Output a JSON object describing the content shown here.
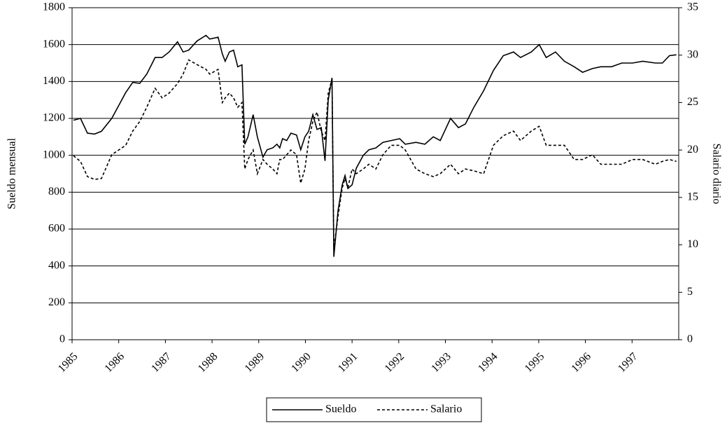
{
  "chart_data": {
    "type": "line",
    "y_label": "Sueldo mensual",
    "y2_label": "Salario diario",
    "x": [
      1985.03,
      1985.18,
      1985.33,
      1985.48,
      1985.63,
      1985.85,
      1986.0,
      1986.15,
      1986.3,
      1986.45,
      1986.6,
      1986.78,
      1986.93,
      1987.08,
      1987.26,
      1987.38,
      1987.5,
      1987.68,
      1987.87,
      1987.95,
      1988.13,
      1988.22,
      1988.28,
      1988.37,
      1988.46,
      1988.55,
      1988.64,
      1988.7,
      1988.77,
      1988.88,
      1988.97,
      1989.09,
      1989.18,
      1989.3,
      1989.39,
      1989.45,
      1989.51,
      1989.6,
      1989.69,
      1989.81,
      1989.9,
      1989.99,
      1990.07,
      1990.16,
      1990.25,
      1990.34,
      1990.42,
      1990.49,
      1990.57,
      1990.61,
      1990.7,
      1990.79,
      1990.85,
      1990.91,
      1991.0,
      1991.09,
      1991.24,
      1991.36,
      1991.51,
      1991.66,
      1991.84,
      1992.02,
      1992.14,
      1992.37,
      1992.56,
      1992.74,
      1992.89,
      1993.11,
      1993.28,
      1993.43,
      1993.61,
      1993.82,
      1994.03,
      1994.24,
      1994.46,
      1994.61,
      1994.84,
      1995.01,
      1995.16,
      1995.36,
      1995.55,
      1995.76,
      1995.94,
      1996.15,
      1996.33,
      1996.56,
      1996.78,
      1997.01,
      1997.23,
      1997.5,
      1997.65,
      1997.8,
      1997.95
    ],
    "series": [
      {
        "name": "Sueldo",
        "color": "#000000",
        "dash": "none",
        "values": [
          1190,
          1200,
          1120,
          1115,
          1130,
          1200,
          1270,
          1340,
          1395,
          1390,
          1440,
          1530,
          1530,
          1560,
          1615,
          1560,
          1570,
          1620,
          1650,
          1630,
          1640,
          1550,
          1510,
          1560,
          1570,
          1480,
          1490,
          1060,
          1100,
          1220,
          1100,
          990,
          1030,
          1040,
          1060,
          1040,
          1090,
          1080,
          1120,
          1110,
          1030,
          1100,
          1130,
          1220,
          1140,
          1150,
          970,
          1300,
          1420,
          450,
          700,
          840,
          890,
          820,
          840,
          930,
          1000,
          1030,
          1040,
          1070,
          1080,
          1090,
          1060,
          1070,
          1060,
          1100,
          1080,
          1200,
          1150,
          1170,
          1260,
          1350,
          1460,
          1540,
          1560,
          1530,
          1560,
          1600,
          1530,
          1560,
          1510,
          1480,
          1450,
          1470,
          1480,
          1480,
          1500,
          1500,
          1510,
          1500,
          1500,
          1540,
          1545
        ]
      },
      {
        "name": "Salario",
        "color": "#000000",
        "dash": "4 3",
        "axis": "y2",
        "values": [
          19.4,
          18.8,
          17.2,
          16.9,
          17.0,
          19.5,
          20.0,
          20.5,
          22.0,
          23.0,
          24.5,
          26.5,
          25.5,
          26.0,
          27.0,
          28.0,
          29.5,
          29.0,
          28.5,
          28.0,
          28.5,
          25.0,
          25.5,
          26.0,
          25.5,
          24.5,
          25.0,
          18.0,
          19.0,
          20.0,
          17.5,
          19.0,
          18.5,
          18.0,
          17.5,
          19.0,
          19.0,
          19.5,
          20.0,
          19.5,
          16.5,
          18.0,
          21.0,
          23.0,
          24.0,
          22.0,
          21.0,
          26.0,
          27.5,
          9.5,
          13.0,
          16.0,
          17.0,
          16.0,
          18.0,
          17.5,
          18.0,
          18.5,
          18.0,
          19.5,
          20.5,
          20.5,
          20.0,
          18.0,
          17.5,
          17.2,
          17.5,
          18.5,
          17.5,
          18.0,
          17.8,
          17.5,
          20.5,
          21.5,
          22.0,
          21.0,
          22.0,
          22.5,
          20.5,
          20.5,
          20.5,
          19.0,
          19.0,
          19.5,
          18.5,
          18.5,
          18.5,
          19.0,
          19.0,
          18.5,
          18.8,
          19.0,
          18.8
        ]
      }
    ],
    "xlim": [
      1985,
      1998
    ],
    "xticks": [
      1985,
      1986,
      1987,
      1988,
      1989,
      1990,
      1991,
      1992,
      1993,
      1994,
      1995,
      1996,
      1997
    ],
    "ylim": [
      0,
      1800
    ],
    "yticks": [
      0,
      200,
      400,
      600,
      800,
      1000,
      1200,
      1400,
      1600,
      1800
    ],
    "y2lim": [
      0,
      35
    ],
    "y2ticks": [
      0,
      5,
      10,
      15,
      20,
      25,
      30,
      35
    ],
    "grid": true,
    "legend": "bottom"
  }
}
